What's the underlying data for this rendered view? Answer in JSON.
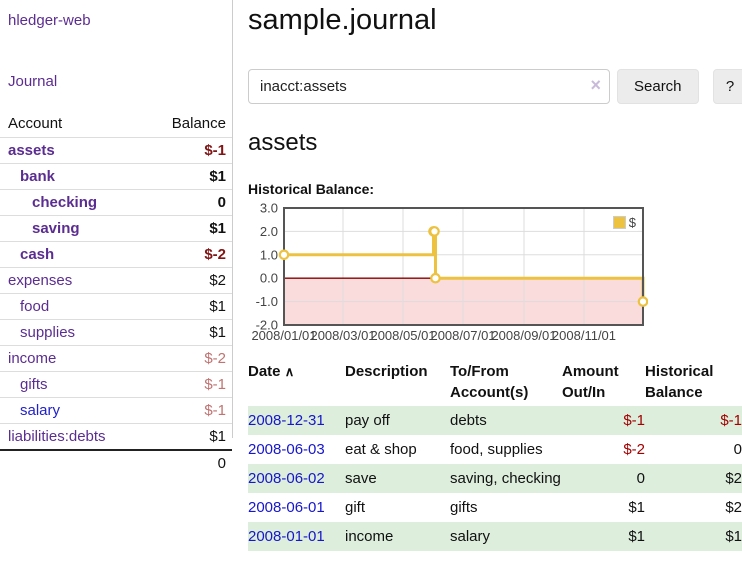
{
  "app": {
    "name": "hledger-web"
  },
  "colors": {
    "link_purple": "#5c2d91",
    "link_blue": "#2222cc",
    "negative_strong": "#801515",
    "negative_soft": "#c07370",
    "negative_table": "#a40000",
    "row_shade_green": "#ddeedd",
    "chart_line_gold": "#edc240"
  },
  "sidebar": {
    "title": "hledger-web",
    "journal_link": "Journal",
    "accounts": {
      "col_account": "Account",
      "col_balance": "Balance",
      "rows": [
        {
          "name": "assets",
          "balance": "$-1",
          "depth": 1,
          "bold": true,
          "balance_style": "neg-strong"
        },
        {
          "name": "bank",
          "balance": "$1",
          "depth": 2,
          "bold": true,
          "balance_style": ""
        },
        {
          "name": "checking",
          "balance": "0",
          "depth": 3,
          "bold": true,
          "balance_style": ""
        },
        {
          "name": "saving",
          "balance": "$1",
          "depth": 3,
          "bold": true,
          "balance_style": ""
        },
        {
          "name": "cash",
          "balance": "$-2",
          "depth": 2,
          "bold": true,
          "balance_style": "neg-strong"
        },
        {
          "name": "expenses",
          "balance": "$2",
          "depth": 1,
          "bold": false,
          "balance_style": ""
        },
        {
          "name": "food",
          "balance": "$1",
          "depth": 2,
          "bold": false,
          "balance_style": ""
        },
        {
          "name": "supplies",
          "balance": "$1",
          "depth": 2,
          "bold": false,
          "balance_style": ""
        },
        {
          "name": "income",
          "balance": "$-2",
          "depth": 1,
          "bold": false,
          "balance_style": "neg-soft"
        },
        {
          "name": "gifts",
          "balance": "$-1",
          "depth": 2,
          "bold": false,
          "balance_style": "neg-soft"
        },
        {
          "name": "salary",
          "balance": "$-1",
          "depth": 2,
          "bold": false,
          "balance_style": "neg-soft",
          "link_style": "blue"
        },
        {
          "name": "liabilities:debts",
          "balance": "$1",
          "depth": 1,
          "bold": false,
          "balance_style": ""
        }
      ],
      "total": "0"
    }
  },
  "main": {
    "title": "sample.journal",
    "search": {
      "value": "inacct:assets",
      "clear_icon": "×",
      "search_button": "Search",
      "help_button": "?"
    },
    "account_heading": "assets",
    "chart_title": "Historical Balance:"
  },
  "chart_data": {
    "type": "line",
    "step": true,
    "title": "Historical Balance",
    "xlim": [
      "2008-01-01",
      "2008-12-31"
    ],
    "ylim": [
      -2,
      3
    ],
    "x_ticks": [
      "2008/01/01",
      "2008/03/01",
      "2008/05/01",
      "2008/07/01",
      "2008/09/01",
      "2008/11/01"
    ],
    "y_ticks": [
      "3.0",
      "2.0",
      "1.0",
      "0.0",
      "-1.0",
      "-2.0"
    ],
    "series": [
      {
        "name": "$",
        "color": "#edc240",
        "points": [
          [
            "2008-01-01",
            1
          ],
          [
            "2008-06-01",
            2
          ],
          [
            "2008-06-02",
            2
          ],
          [
            "2008-06-03",
            0
          ],
          [
            "2008-12-31",
            -1
          ]
        ]
      }
    ],
    "legend": {
      "label": "$",
      "position": "top-right"
    },
    "grid": true,
    "grid_color": "#dddddd",
    "border_color": "#555555",
    "negative_region_fill": "#fbdcdc",
    "zero_line_color": "#8b0000",
    "axis_text_color": "#444444"
  },
  "register": {
    "headers": {
      "date": "Date",
      "sort_icon": "∧",
      "description": "Description",
      "accounts": "To/From Account(s)",
      "amount": "Amount Out/In",
      "balance": "Historical Balance"
    },
    "rows": [
      {
        "date": "2008-12-31",
        "description": "pay off",
        "accounts": "debts",
        "amount": "$-1",
        "amount_neg": true,
        "balance": "$-1",
        "balance_neg": true,
        "shaded": true
      },
      {
        "date": "2008-06-03",
        "description": "eat & shop",
        "accounts": "food, supplies",
        "amount": "$-2",
        "amount_neg": true,
        "balance": "0",
        "balance_neg": false,
        "shaded": false
      },
      {
        "date": "2008-06-02",
        "description": "save",
        "accounts": "saving, checking",
        "amount": "0",
        "amount_neg": false,
        "balance": "$2",
        "balance_neg": false,
        "shaded": true
      },
      {
        "date": "2008-06-01",
        "description": "gift",
        "accounts": "gifts",
        "amount": "$1",
        "amount_neg": false,
        "balance": "$2",
        "balance_neg": false,
        "shaded": false
      },
      {
        "date": "2008-01-01",
        "description": "income",
        "accounts": "salary",
        "amount": "$1",
        "amount_neg": false,
        "balance": "$1",
        "balance_neg": false,
        "shaded": true
      }
    ]
  }
}
